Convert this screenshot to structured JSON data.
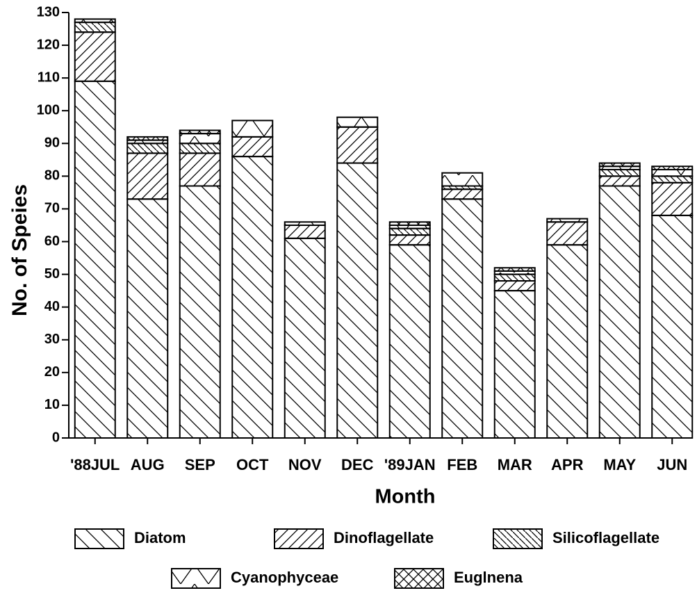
{
  "chart_data": {
    "type": "stacked-bar",
    "x_label": "Month",
    "y_label": "No. of Speies",
    "categories": [
      "'88JUL",
      "AUG",
      "SEP",
      "OCT",
      "NOV",
      "DEC",
      "'89JAN",
      "FEB",
      "MAR",
      "APR",
      "MAY",
      "JUN"
    ],
    "series": [
      {
        "name": "Diatom",
        "color": "#000000",
        "hatch": "diag-down",
        "values": [
          109,
          73,
          77,
          86,
          61,
          84,
          59,
          73,
          45,
          59,
          77,
          68
        ]
      },
      {
        "name": "Dinoflagellate",
        "color": "#000000",
        "hatch": "diag-up",
        "values": [
          15,
          14,
          10,
          6,
          4,
          11,
          3,
          3,
          3,
          7,
          3,
          10
        ]
      },
      {
        "name": "Silicoflagellate",
        "color": "#000000",
        "hatch": "diag-down-dense",
        "values": [
          3,
          3,
          3,
          0,
          0,
          0,
          2,
          1,
          2,
          0,
          2,
          2
        ]
      },
      {
        "name": "Cyanophyceae",
        "color": "#000000",
        "hatch": "chevron",
        "values": [
          1,
          1,
          3,
          5,
          1,
          3,
          1,
          4,
          1,
          1,
          1,
          2
        ]
      },
      {
        "name": "Euglnena",
        "color": "#000000",
        "hatch": "cross",
        "values": [
          0,
          1,
          1,
          0,
          0,
          0,
          1,
          0,
          1,
          0,
          1,
          1
        ]
      }
    ],
    "ylim": [
      0,
      130
    ],
    "yticks": [
      0,
      10,
      20,
      30,
      40,
      50,
      60,
      70,
      80,
      90,
      100,
      110,
      120,
      130
    ]
  }
}
